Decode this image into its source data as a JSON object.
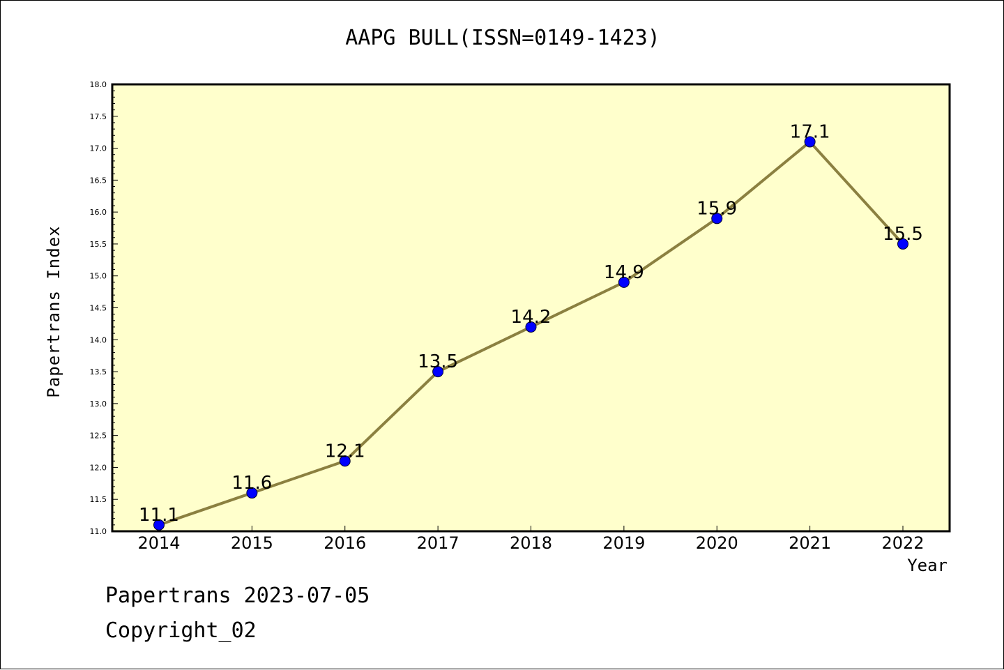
{
  "page": {
    "footer_line1": "Papertrans 2023-07-05",
    "footer_line2": "Copyright_02"
  },
  "colors": {
    "plot_background": "#ffffcc",
    "line": "#8b8040",
    "marker": "#0000ff"
  },
  "chart_data": {
    "type": "line",
    "title": "AAPG BULL(ISSN=0149-1423)",
    "xlabel": "Year",
    "ylabel": "Papertrans Index",
    "categories": [
      "2014",
      "2015",
      "2016",
      "2017",
      "2018",
      "2019",
      "2020",
      "2021",
      "2022"
    ],
    "values": [
      11.1,
      11.6,
      12.1,
      13.5,
      14.2,
      14.9,
      15.9,
      17.1,
      15.5
    ],
    "data_labels": [
      "11.1",
      "11.6",
      "12.1",
      "13.5",
      "14.2",
      "14.9",
      "15.9",
      "17.1",
      "15.5"
    ],
    "ylim": [
      11.0,
      18.0
    ],
    "yticks": [
      "11.0",
      "11.5",
      "12.0",
      "12.5",
      "13.0",
      "13.5",
      "14.0",
      "14.5",
      "15.0",
      "15.5",
      "16.0",
      "16.5",
      "17.0",
      "17.5",
      "18.0"
    ],
    "grid": false,
    "legend": "none"
  }
}
